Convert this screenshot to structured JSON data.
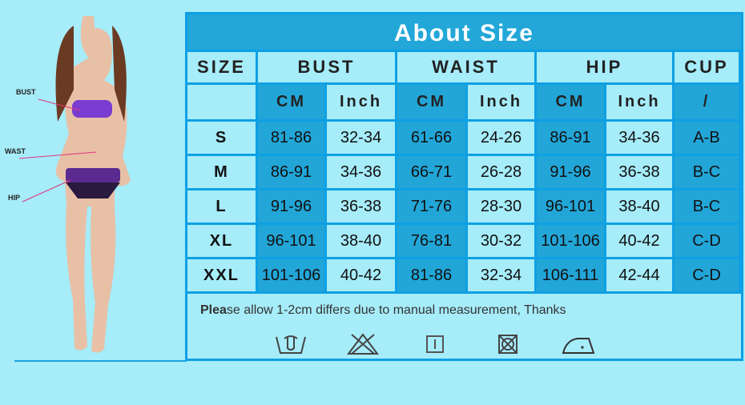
{
  "figure_labels": {
    "bust": "BUST",
    "waist": "WAST",
    "hip": "HIP"
  },
  "title": "About Size",
  "headers": {
    "size": "SIZE",
    "bust": "BUST",
    "waist": "WAIST",
    "hip": "HIP",
    "cup": "CUP"
  },
  "subheaders": [
    "CM",
    "Inch",
    "CM",
    "Inch",
    "CM",
    "Inch",
    "/"
  ],
  "rows": [
    {
      "size": "S",
      "values": [
        "81-86",
        "32-34",
        "61-66",
        "24-26",
        "86-91",
        "34-36",
        "A-B"
      ]
    },
    {
      "size": "M",
      "values": [
        "86-91",
        "34-36",
        "66-71",
        "26-28",
        "91-96",
        "36-38",
        "B-C"
      ]
    },
    {
      "size": "L",
      "values": [
        "91-96",
        "36-38",
        "71-76",
        "28-30",
        "96-101",
        "38-40",
        "B-C"
      ]
    },
    {
      "size": "XL",
      "values": [
        "96-101",
        "38-40",
        "76-81",
        "30-32",
        "101-106",
        "40-42",
        "C-D"
      ]
    },
    {
      "size": "XXL",
      "values": [
        "101-106",
        "40-42",
        "81-86",
        "32-34",
        "106-111",
        "42-44",
        "C-D"
      ]
    }
  ],
  "note_bold": "Plea",
  "note": "se allow 1-2cm differs due to manual measurement, Thanks",
  "care_icons": [
    "hand-wash-icon",
    "do-not-bleach-icon",
    "line-dry-icon",
    "do-not-tumble-dry-icon",
    "iron-low-icon"
  ],
  "colors": {
    "background": "#a6ecf9",
    "dark_cell": "#22a6d8",
    "border": "#0ea0e4"
  }
}
